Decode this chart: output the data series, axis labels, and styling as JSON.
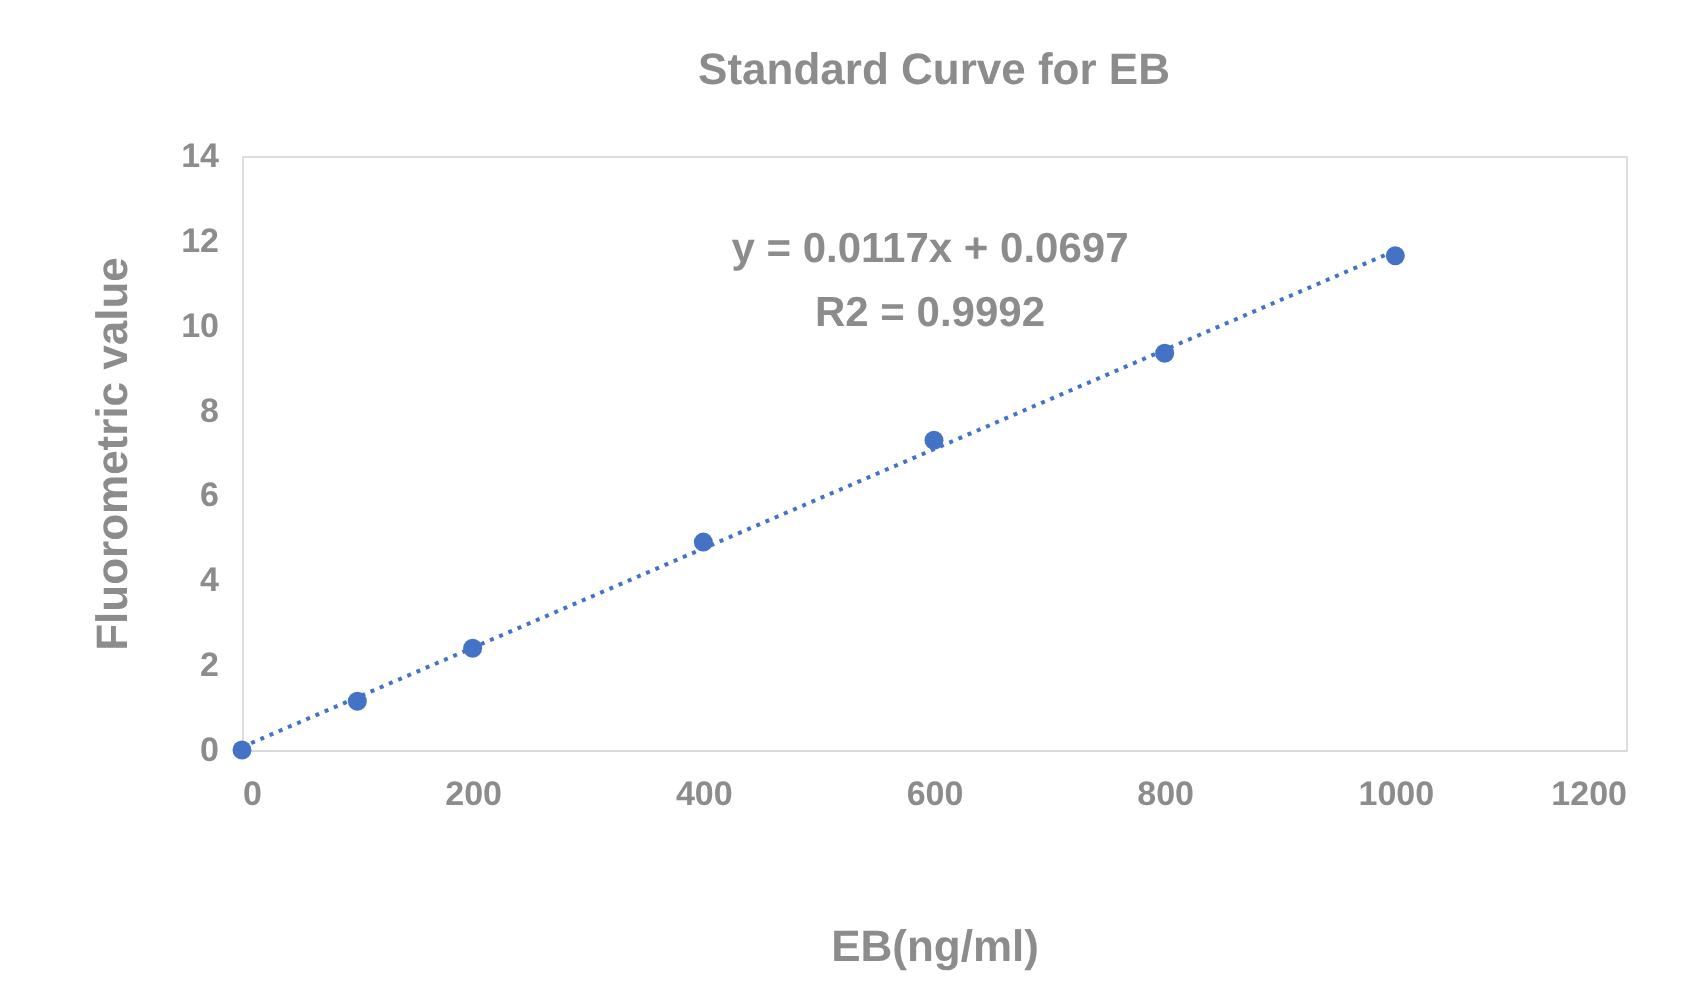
{
  "chart_data": {
    "type": "scatter",
    "title": "Standard Curve for EB",
    "xlabel": "EB(ng/ml)",
    "ylabel": "Fluorometric value",
    "annotations": [
      "y = 0.0117x + 0.0697",
      "R2 = 0.9992"
    ],
    "series": [
      {
        "color": "#4472c4",
        "marker": "circle",
        "x": [
          0,
          100,
          200,
          400,
          600,
          800,
          1000
        ],
        "values": [
          0,
          1.15,
          2.4,
          4.9,
          7.3,
          9.35,
          11.65
        ]
      },
      {
        "type": "line",
        "color": "#4472c4",
        "line_style": "dotted",
        "x": [
          0,
          1000
        ],
        "values": [
          0.07,
          11.77
        ]
      }
    ],
    "xlim": [
      0,
      1200
    ],
    "xticks": [
      0,
      200,
      400,
      600,
      800,
      1000,
      1200
    ],
    "ylim": [
      0,
      14
    ],
    "yticks": [
      0,
      2,
      4,
      6,
      8,
      10,
      12,
      14
    ],
    "grid": false
  }
}
